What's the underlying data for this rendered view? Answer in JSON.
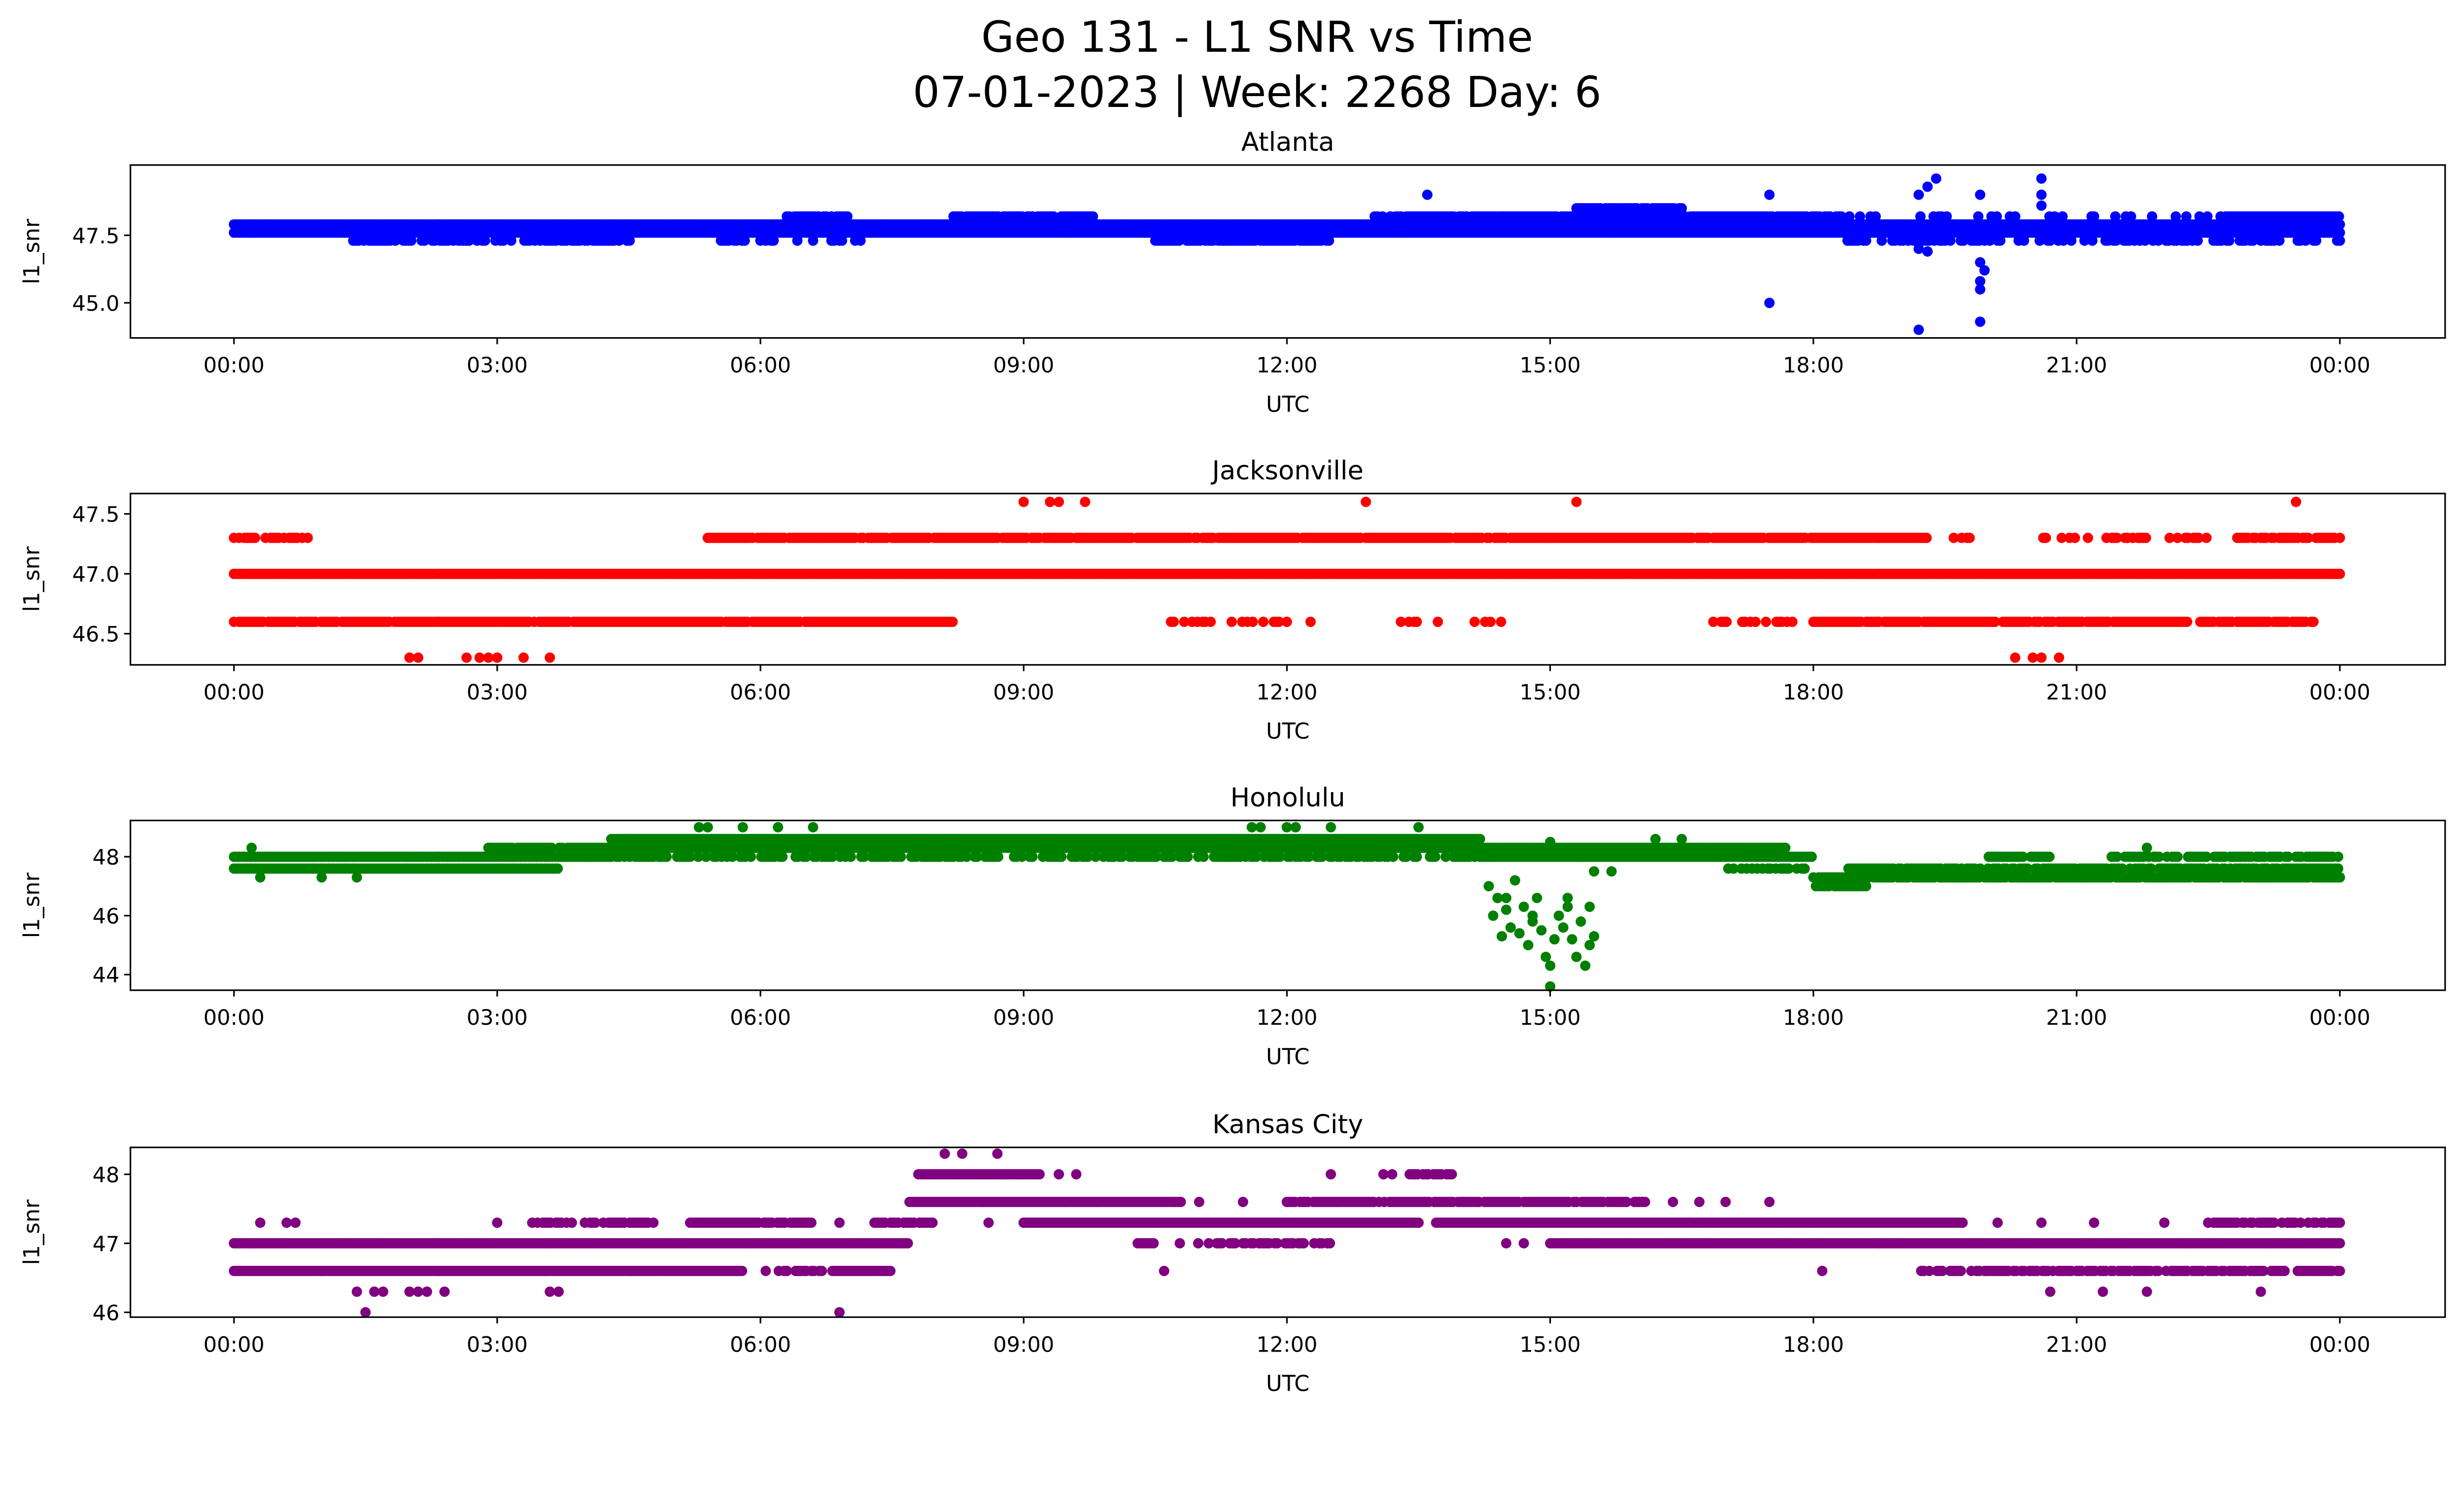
{
  "title_line1": "Geo 131 - L1 SNR vs Time",
  "title_line2": "07-01-2023 | Week: 2268 Day: 6",
  "chart_data": [
    {
      "type": "scatter",
      "title": "Atlanta",
      "xlabel": "UTC",
      "ylabel": "l1_snr",
      "color": "#0000ff",
      "xlim": [
        -1.18,
        25.2
      ],
      "ylim": [
        43.7,
        50.1
      ],
      "xticks": [
        0,
        3,
        6,
        9,
        12,
        15,
        18,
        21,
        24
      ],
      "xtick_labels": [
        "00:00",
        "03:00",
        "06:00",
        "09:00",
        "12:00",
        "15:00",
        "18:00",
        "21:00",
        "00:00"
      ],
      "yticks": [
        47.5,
        45.0
      ],
      "ytick_labels": [
        "47.5",
        "45.0"
      ],
      "bands": [
        [
          47.6,
          0,
          24,
          1
        ],
        [
          47.9,
          0,
          24,
          1
        ],
        [
          47.3,
          1.3,
          4.6,
          0.7
        ],
        [
          47.3,
          10.5,
          12.5,
          0.9
        ],
        [
          47.3,
          18.3,
          24,
          0.5
        ],
        [
          47.3,
          5.4,
          7.2,
          0.2
        ],
        [
          48.2,
          6.3,
          7.0,
          0.8
        ],
        [
          48.2,
          8.2,
          9.8,
          0.9
        ],
        [
          48.2,
          13.0,
          18.2,
          0.9
        ],
        [
          48.2,
          18.2,
          22.7,
          0.3
        ],
        [
          48.2,
          22.7,
          24,
          1
        ],
        [
          48.5,
          15.3,
          16.5,
          0.9
        ]
      ],
      "points": [
        [
          13.6,
          49.0
        ],
        [
          17.5,
          49.0
        ],
        [
          17.5,
          45.0
        ],
        [
          19.2,
          44.0
        ],
        [
          19.2,
          49.0
        ],
        [
          19.3,
          49.3
        ],
        [
          19.4,
          49.6
        ],
        [
          19.3,
          46.9
        ],
        [
          19.2,
          47.0
        ],
        [
          19.9,
          44.3
        ],
        [
          19.9,
          45.5
        ],
        [
          19.9,
          45.8
        ],
        [
          19.95,
          46.2
        ],
        [
          19.9,
          46.5
        ],
        [
          19.9,
          49.0
        ],
        [
          20.6,
          49.6
        ],
        [
          20.6,
          49.0
        ],
        [
          20.6,
          48.6
        ]
      ]
    },
    {
      "type": "scatter",
      "title": "Jacksonville",
      "xlabel": "UTC",
      "ylabel": "l1_snr",
      "color": "#ff0000",
      "xlim": [
        -1.18,
        25.2
      ],
      "ylim": [
        46.24,
        47.67
      ],
      "xticks": [
        0,
        3,
        6,
        9,
        12,
        15,
        18,
        21,
        24
      ],
      "xtick_labels": [
        "00:00",
        "03:00",
        "06:00",
        "09:00",
        "12:00",
        "15:00",
        "18:00",
        "21:00",
        "00:00"
      ],
      "yticks": [
        47.5,
        47.0,
        46.5
      ],
      "ytick_labels": [
        "47.5",
        "47.0",
        "46.5"
      ],
      "bands": [
        [
          47.0,
          0,
          24,
          1
        ],
        [
          47.3,
          0,
          0.9,
          0.6
        ],
        [
          47.3,
          5.4,
          19.3,
          0.95
        ],
        [
          47.3,
          19.6,
          19.8,
          0.5
        ],
        [
          47.3,
          20.5,
          22.5,
          0.35
        ],
        [
          47.3,
          22.8,
          24,
          0.9
        ],
        [
          46.6,
          0,
          8.2,
          0.95
        ],
        [
          46.6,
          10.5,
          12.3,
          0.35
        ],
        [
          46.6,
          13.3,
          14.5,
          0.3
        ],
        [
          46.6,
          16.8,
          18.0,
          0.4
        ],
        [
          46.6,
          18.0,
          23.7,
          0.9
        ]
      ],
      "points": [
        [
          2.0,
          46.3
        ],
        [
          2.1,
          46.3
        ],
        [
          2.65,
          46.3
        ],
        [
          2.8,
          46.3
        ],
        [
          2.9,
          46.3
        ],
        [
          3.0,
          46.3
        ],
        [
          3.3,
          46.3
        ],
        [
          3.6,
          46.3
        ],
        [
          20.3,
          46.3
        ],
        [
          20.5,
          46.3
        ],
        [
          20.6,
          46.3
        ],
        [
          20.8,
          46.3
        ],
        [
          9.0,
          47.6
        ],
        [
          9.3,
          47.6
        ],
        [
          9.4,
          47.6
        ],
        [
          9.7,
          47.6
        ],
        [
          12.9,
          47.6
        ],
        [
          15.3,
          47.6
        ],
        [
          23.5,
          47.6
        ]
      ]
    },
    {
      "type": "scatter",
      "title": "Honolulu",
      "xlabel": "UTC",
      "ylabel": "l1_snr",
      "color": "#008000",
      "xlim": [
        -1.18,
        25.2
      ],
      "ylim": [
        43.47,
        49.23
      ],
      "xticks": [
        0,
        3,
        6,
        9,
        12,
        15,
        18,
        21,
        24
      ],
      "xtick_labels": [
        "00:00",
        "03:00",
        "06:00",
        "09:00",
        "12:00",
        "15:00",
        "18:00",
        "21:00",
        "00:00"
      ],
      "yticks": [
        48,
        46,
        44
      ],
      "ytick_labels": [
        "48",
        "46",
        "44"
      ],
      "bands": [
        [
          47.6,
          0,
          3.7,
          1
        ],
        [
          48.0,
          0,
          4.3,
          1
        ],
        [
          48.3,
          2.9,
          4.3,
          0.9
        ],
        [
          48.0,
          4.3,
          14.2,
          0.6
        ],
        [
          48.3,
          4.3,
          17.7,
          1
        ],
        [
          48.6,
          4.3,
          14.2,
          1
        ],
        [
          48.0,
          14.2,
          18.0,
          1
        ],
        [
          47.6,
          17.0,
          18.0,
          0.5
        ],
        [
          47.3,
          18.0,
          24,
          0.9
        ],
        [
          47.0,
          18.0,
          18.6,
          0.8
        ],
        [
          47.6,
          18.4,
          24,
          0.8
        ],
        [
          48.0,
          20.0,
          20.7,
          0.9
        ],
        [
          48.0,
          21.4,
          24,
          0.8
        ]
      ],
      "points": [
        [
          5.3,
          49.0
        ],
        [
          5.4,
          49.0
        ],
        [
          5.8,
          49.0
        ],
        [
          6.2,
          49.0
        ],
        [
          6.6,
          49.0
        ],
        [
          11.6,
          49.0
        ],
        [
          11.7,
          49.0
        ],
        [
          12.0,
          49.0
        ],
        [
          12.1,
          49.0
        ],
        [
          12.5,
          49.0
        ],
        [
          13.5,
          49.0
        ],
        [
          0.3,
          47.3
        ],
        [
          1.0,
          47.3
        ],
        [
          1.4,
          47.3
        ],
        [
          0.2,
          48.3
        ],
        [
          21.8,
          48.3
        ],
        [
          14.3,
          47.0
        ],
        [
          14.35,
          46.0
        ],
        [
          14.4,
          46.6
        ],
        [
          14.45,
          45.3
        ],
        [
          14.5,
          46.2
        ],
        [
          14.55,
          45.6
        ],
        [
          14.6,
          47.2
        ],
        [
          14.65,
          45.4
        ],
        [
          14.7,
          46.3
        ],
        [
          14.75,
          45.0
        ],
        [
          14.8,
          45.8
        ],
        [
          14.85,
          46.6
        ],
        [
          14.9,
          45.5
        ],
        [
          14.95,
          44.6
        ],
        [
          15.0,
          43.6
        ],
        [
          15.0,
          44.3
        ],
        [
          15.05,
          45.2
        ],
        [
          15.1,
          46.0
        ],
        [
          15.15,
          45.6
        ],
        [
          15.2,
          46.6
        ],
        [
          15.25,
          45.2
        ],
        [
          15.3,
          44.6
        ],
        [
          15.35,
          45.8
        ],
        [
          15.4,
          44.3
        ],
        [
          15.45,
          46.3
        ],
        [
          15.5,
          45.3
        ],
        [
          14.5,
          46.6
        ],
        [
          14.8,
          46.0
        ],
        [
          15.2,
          46.3
        ],
        [
          15.45,
          45.0
        ],
        [
          15.0,
          48.5
        ],
        [
          15.5,
          47.5
        ],
        [
          15.7,
          47.5
        ],
        [
          16.2,
          48.6
        ],
        [
          16.5,
          48.6
        ]
      ]
    },
    {
      "type": "scatter",
      "title": "Kansas City",
      "xlabel": "UTC",
      "ylabel": "l1_snr",
      "color": "#800080",
      "xlim": [
        -1.18,
        25.2
      ],
      "ylim": [
        45.93,
        48.39
      ],
      "xticks": [
        0,
        3,
        6,
        9,
        12,
        15,
        18,
        21,
        24
      ],
      "xtick_labels": [
        "00:00",
        "03:00",
        "06:00",
        "09:00",
        "12:00",
        "15:00",
        "18:00",
        "21:00",
        "00:00"
      ],
      "yticks": [
        48,
        47,
        46
      ],
      "ytick_labels": [
        "48",
        "47",
        "46"
      ],
      "bands": [
        [
          47.0,
          0,
          7.7,
          1
        ],
        [
          47.0,
          10.3,
          12.5,
          0.5
        ],
        [
          47.0,
          15.0,
          24,
          1
        ],
        [
          46.6,
          0,
          5.8,
          1
        ],
        [
          46.6,
          6.0,
          6.3,
          0.6
        ],
        [
          46.6,
          6.4,
          7.5,
          0.9
        ],
        [
          46.6,
          19.2,
          24,
          0.8
        ],
        [
          47.3,
          3.4,
          4.8,
          0.6
        ],
        [
          47.3,
          5.2,
          6.6,
          0.9
        ],
        [
          47.3,
          7.3,
          8.0,
          0.9
        ],
        [
          47.3,
          9.0,
          13.5,
          1
        ],
        [
          47.3,
          13.7,
          19.7,
          1
        ],
        [
          47.3,
          22.5,
          24,
          0.7
        ],
        [
          47.6,
          7.7,
          10.8,
          1
        ],
        [
          47.6,
          12.0,
          16.1,
          0.9
        ],
        [
          48.0,
          7.8,
          9.2,
          1
        ],
        [
          48.0,
          13.4,
          13.9,
          0.8
        ]
      ],
      "points": [
        [
          0.3,
          47.3
        ],
        [
          0.6,
          47.3
        ],
        [
          0.7,
          47.3
        ],
        [
          3.0,
          47.3
        ],
        [
          6.9,
          47.3
        ],
        [
          8.6,
          47.3
        ],
        [
          20.1,
          47.3
        ],
        [
          20.6,
          47.3
        ],
        [
          21.2,
          47.3
        ],
        [
          22.0,
          47.3
        ],
        [
          11.0,
          47.6
        ],
        [
          11.5,
          47.6
        ],
        [
          16.4,
          47.6
        ],
        [
          16.7,
          47.6
        ],
        [
          17.0,
          47.6
        ],
        [
          17.5,
          47.6
        ],
        [
          9.4,
          48.0
        ],
        [
          9.6,
          48.0
        ],
        [
          12.5,
          48.0
        ],
        [
          13.1,
          48.0
        ],
        [
          13.2,
          48.0
        ],
        [
          8.1,
          48.3
        ],
        [
          8.3,
          48.3
        ],
        [
          8.7,
          48.3
        ],
        [
          10.6,
          46.6
        ],
        [
          18.1,
          46.6
        ],
        [
          14.5,
          47.0
        ],
        [
          14.7,
          47.0
        ],
        [
          1.4,
          46.3
        ],
        [
          1.6,
          46.3
        ],
        [
          1.7,
          46.3
        ],
        [
          2.0,
          46.3
        ],
        [
          2.1,
          46.3
        ],
        [
          2.2,
          46.3
        ],
        [
          2.4,
          46.3
        ],
        [
          3.6,
          46.3
        ],
        [
          3.7,
          46.3
        ],
        [
          20.7,
          46.3
        ],
        [
          21.3,
          46.3
        ],
        [
          21.8,
          46.3
        ],
        [
          23.1,
          46.3
        ],
        [
          1.5,
          46.0
        ],
        [
          6.9,
          46.0
        ]
      ]
    }
  ]
}
